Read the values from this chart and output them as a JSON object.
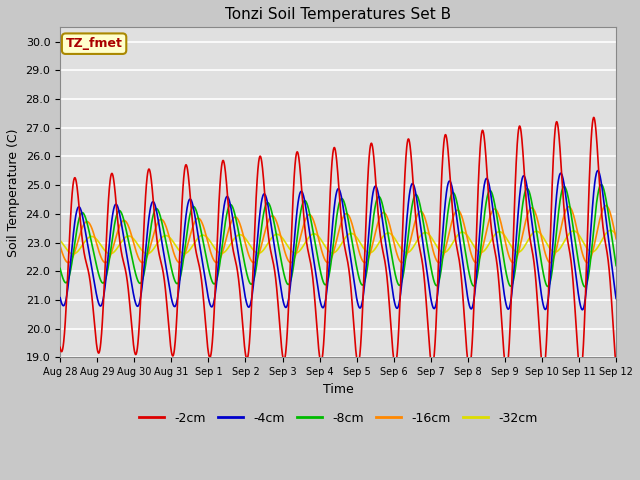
{
  "title": "Tonzi Soil Temperatures Set B",
  "xlabel": "Time",
  "ylabel": "Soil Temperature (C)",
  "ylim": [
    19.0,
    30.5
  ],
  "yticks": [
    19.0,
    20.0,
    21.0,
    22.0,
    23.0,
    24.0,
    25.0,
    26.0,
    27.0,
    28.0,
    29.0,
    30.0
  ],
  "xtick_labels": [
    "Aug 28",
    "Aug 29",
    "Aug 30",
    "Aug 31",
    "Sep 1",
    "Sep 2",
    "Sep 3",
    "Sep 4",
    "Sep 5",
    "Sep 6",
    "Sep 7",
    "Sep 8",
    "Sep 9",
    "Sep 10",
    "Sep 11",
    "Sep 12"
  ],
  "series": {
    "-2cm": {
      "color": "#dd0000",
      "lw": 1.2
    },
    "-4cm": {
      "color": "#0000cc",
      "lw": 1.2
    },
    "-8cm": {
      "color": "#00bb00",
      "lw": 1.2
    },
    "-16cm": {
      "color": "#ff8800",
      "lw": 1.2
    },
    "-32cm": {
      "color": "#dddd00",
      "lw": 1.2
    }
  },
  "legend_label": "TZ_fmet",
  "bg_color": "#e0e0e0",
  "fig_bg_color": "#c8c8c8",
  "grid_color": "#ffffff",
  "annotation_box_color": "#ffffcc",
  "annotation_text_color": "#aa0000",
  "n_days": 15
}
